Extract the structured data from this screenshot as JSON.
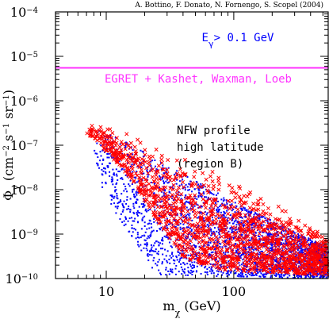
{
  "chart_data": {
    "type": "scatter",
    "title": "",
    "credit": "A. Bottino, F. Donato, N. Fornengo, S. Scopel (2004)",
    "xlabel": "m_χ (GeV)",
    "ylabel": "Φ_γ (cm⁻² s⁻¹ sr⁻¹)",
    "x_scale": "log",
    "y_scale": "log",
    "xlim": [
      4,
      550
    ],
    "ylim": [
      1e-10,
      0.0001
    ],
    "x_tick_labels": [
      "10",
      "100"
    ],
    "y_tick_labels": [
      {
        "mantissa": "10",
        "exp": "−10"
      },
      {
        "mantissa": "10",
        "exp": "−9"
      },
      {
        "mantissa": "10",
        "exp": "−8"
      },
      {
        "mantissa": "10",
        "exp": "−7"
      },
      {
        "mantissa": "10",
        "exp": "−6"
      },
      {
        "mantissa": "10",
        "exp": "−5"
      },
      {
        "mantissa": "10",
        "exp": "−4"
      }
    ],
    "energy_cut_label": "E_γ> 0.1 GeV",
    "reference_line": {
      "label": "EGRET + Kashet, Waxman, Loeb",
      "y": 5.5e-06,
      "color": "#ff33ff"
    },
    "annotation": [
      "NFW profile",
      "high latitude",
      "(region B)"
    ],
    "series": [
      {
        "color": "#0000ff",
        "marker": "dot",
        "upper_envelope": [
          [
            8,
            2.5e-07
          ],
          [
            15,
            1.1e-07
          ],
          [
            30,
            3.5e-08
          ],
          [
            60,
            1.2e-08
          ],
          [
            120,
            4e-09
          ],
          [
            250,
            1.5e-09
          ],
          [
            550,
            5e-10
          ]
        ],
        "lower_envelope": [
          [
            8,
            2e-08
          ],
          [
            15,
            1e-09
          ],
          [
            25,
            1.2e-10
          ],
          [
            550,
            1e-10
          ]
        ]
      },
      {
        "color": "#ff0000",
        "marker": "cross",
        "upper_envelope": [
          [
            7,
            3.6e-07
          ],
          [
            15,
            1.8e-07
          ],
          [
            30,
            9e-08
          ],
          [
            60,
            4e-08
          ],
          [
            120,
            1.4e-08
          ],
          [
            250,
            4e-09
          ],
          [
            550,
            1e-09
          ]
        ],
        "lower_envelope": [
          [
            8,
            1.5e-07
          ],
          [
            15,
            2e-08
          ],
          [
            25,
            2e-09
          ],
          [
            40,
            3e-10
          ],
          [
            80,
            1.5e-10
          ],
          [
            550,
            1.2e-10
          ]
        ]
      }
    ]
  }
}
